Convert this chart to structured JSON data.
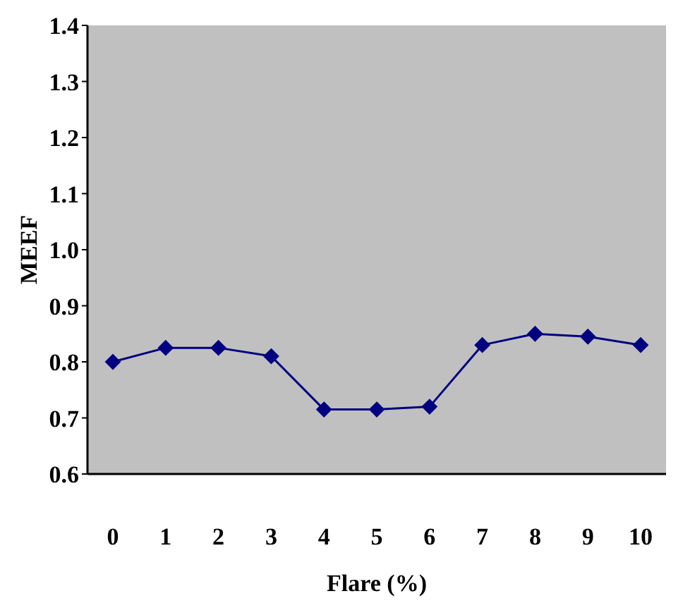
{
  "chart_data": {
    "type": "line",
    "xlabel": "Flare (%)",
    "ylabel": "MEEF",
    "categories": [
      "0",
      "1",
      "2",
      "3",
      "4",
      "5",
      "6",
      "7",
      "8",
      "9",
      "10"
    ],
    "series": [
      {
        "color": "#000080",
        "values": [
          0.8,
          0.825,
          0.825,
          0.81,
          0.715,
          0.715,
          0.72,
          0.83,
          0.85,
          0.845,
          0.83
        ]
      }
    ],
    "ylim": [
      0.6,
      1.4
    ],
    "yticks": [
      {
        "value": 0.6,
        "label": "0.6"
      },
      {
        "value": 0.7,
        "label": "0.7"
      },
      {
        "value": 0.8,
        "label": "0.8"
      },
      {
        "value": 0.9,
        "label": "0.9"
      },
      {
        "value": 1,
        "label": "1.0"
      },
      {
        "value": 1.1,
        "label": "1.1"
      },
      {
        "value": 1.2,
        "label": "1.2"
      },
      {
        "value": 1.3,
        "label": "1.3"
      },
      {
        "value": 1.4,
        "label": "1.4"
      }
    ],
    "marker": "diamond",
    "line_style": "solid",
    "legend": false
  }
}
